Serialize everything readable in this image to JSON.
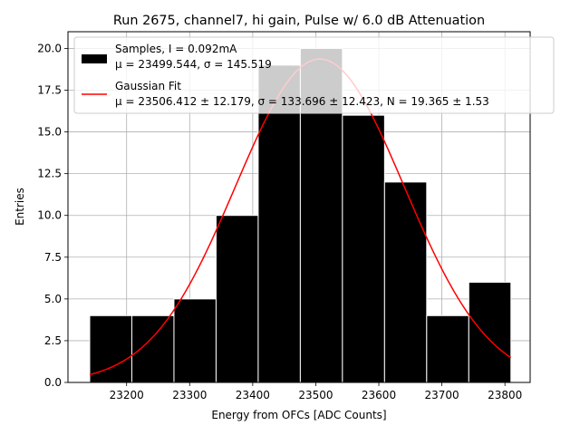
{
  "chart_data": {
    "type": "bar",
    "title": "Run 2675, channel7, hi gain, Pulse w/ 6.0 dB Attenuation",
    "xlabel": "Energy from OFCs [ADC Counts]",
    "ylabel": "Entries",
    "xlim": [
      23107,
      23840
    ],
    "ylim": [
      0,
      21
    ],
    "grid": true,
    "legend_position": "top-right",
    "xticks": [
      "23200",
      "23300",
      "23400",
      "23500",
      "23600",
      "23700",
      "23800"
    ],
    "yticks": [
      "0.0",
      "2.5",
      "5.0",
      "7.5",
      "10.0",
      "12.5",
      "15.0",
      "17.5",
      "20.0"
    ],
    "bins": {
      "edges": [
        23141.5,
        23208.3,
        23275.1,
        23341.9,
        23408.7,
        23475.5,
        23542.3,
        23609.1,
        23675.9,
        23742.7,
        23809.5
      ],
      "counts": [
        4,
        4,
        5,
        10,
        19,
        20,
        16,
        12,
        4,
        6
      ]
    },
    "series": [
      {
        "name": "Samples, I = 0.092mA",
        "name_line2": "μ = 23499.544, σ = 145.519",
        "kind": "histogram",
        "color": "#000000"
      },
      {
        "name": "Gaussian Fit",
        "name_line2": "μ = 23506.412 ± 12.179, σ = 133.696 ± 12.423, N = 19.365 ± 1.53",
        "kind": "line",
        "color": "#ff0000",
        "fit": {
          "mu": 23506.412,
          "sigma": 133.696,
          "N": 19.365
        },
        "x_range": [
          23141.5,
          23809.5
        ]
      }
    ]
  }
}
